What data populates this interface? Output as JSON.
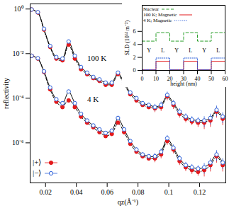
{
  "chart_data": [
    {
      "type": "scatter",
      "xlabel": "qz(Å⁻¹)",
      "ylabel": "reflectivity",
      "log": "y",
      "xlim": [
        0.01,
        0.137
      ],
      "xticks": [
        0.02,
        0.04,
        0.06,
        0.08,
        0.1,
        0.12
      ],
      "ylim": [
        1.6e-08,
        1.7
      ],
      "yticks": [
        {
          "value": 1,
          "label": "10⁰"
        },
        {
          "value": 0.01,
          "label": "10⁻²"
        },
        {
          "value": 0.0001,
          "label": "10⁻⁴"
        },
        {
          "value": 1e-06,
          "label": "10⁻⁶"
        }
      ],
      "legend": "lower left",
      "x": [
        0.011,
        0.015,
        0.019,
        0.023,
        0.027,
        0.031,
        0.035,
        0.039,
        0.043,
        0.047,
        0.051,
        0.055,
        0.059,
        0.063,
        0.067,
        0.071,
        0.075,
        0.079,
        0.083,
        0.087,
        0.091,
        0.095,
        0.099,
        0.103,
        0.107,
        0.111,
        0.115,
        0.119,
        0.123,
        0.127,
        0.131,
        0.135
      ],
      "groups": [
        {
          "label": "100 K",
          "label_x": 0.047,
          "label_y": 0.006,
          "series": [
            {
              "name": "|+⟩",
              "color": "#e31a1c",
              "marker": "filled circle",
              "line_style": "dashed",
              "values": [
                0.95,
                0.7,
                0.12,
                0.02,
                0.006,
                0.005,
                0.025,
                0.006,
                0.002,
                0.0012,
                0.0008,
                0.0006,
                0.0004,
                0.0004,
                0.0012,
                0.0004,
                0.00015,
                8e-05,
                5e-05,
                4e-05,
                3.5e-05,
                4e-05,
                0.00012,
                5e-05,
                2e-05,
                1.2e-05,
                9e-06,
                8e-06,
                8e-06,
                1e-05,
                2.5e-05,
                1.2e-05
              ],
              "errors": [
                0.03,
                0.02,
                0.004,
                0.0006,
                0.0002,
                0.0005,
                0.0025,
                0.0006,
                0.0002,
                0.00012,
                8e-05,
                6e-05,
                4e-05,
                8e-05,
                0.00024,
                8e-05,
                3e-05,
                1.6e-05,
                1e-05,
                8e-06,
                1.2e-05,
                1.4e-05,
                4.2e-05,
                1.8e-05,
                7e-06,
                4e-06,
                3e-06,
                3e-06,
                4e-06,
                5e-06,
                1.2e-05,
                6e-06
              ],
              "fit": [
                0.95,
                0.68,
                0.11,
                0.019,
                0.0058,
                0.0052,
                0.024,
                0.0062,
                0.0021,
                0.0012,
                0.00078,
                0.00058,
                0.00042,
                0.00042,
                0.0011,
                0.00042,
                0.00015,
                8e-05,
                5e-05,
                4e-05,
                3.6e-05,
                4.2e-05,
                0.00011,
                5e-05,
                2e-05,
                1.2e-05,
                9.5e-06,
                8.5e-06,
                8.5e-06,
                1.1e-05,
                2.4e-05,
                1.2e-05
              ]
            },
            {
              "name": "|−⟩",
              "color": "#2b5fd9",
              "marker": "open circle",
              "line_style": "solid",
              "values": [
                0.95,
                0.72,
                0.13,
                0.022,
                0.007,
                0.006,
                0.035,
                0.008,
                0.0025,
                0.0014,
                0.0009,
                0.0007,
                0.0005,
                0.0005,
                0.0014,
                0.0005,
                0.00018,
                0.0001,
                6e-05,
                5e-05,
                4e-05,
                5e-05,
                0.00014,
                6e-05,
                2.5e-05,
                1.5e-05,
                1.1e-05,
                1e-05,
                1e-05,
                1.3e-05,
                3e-05,
                1.5e-05
              ],
              "errors": [
                0.03,
                0.02,
                0.004,
                0.0007,
                0.0002,
                0.0006,
                0.0035,
                0.0008,
                0.00025,
                0.00014,
                9e-05,
                7e-05,
                5e-05,
                0.0001,
                0.00028,
                0.0001,
                3.6e-05,
                2e-05,
                1.2e-05,
                1e-05,
                1.4e-05,
                1.8e-05,
                5e-05,
                2e-05,
                9e-06,
                5e-06,
                4e-06,
                3.5e-06,
                5e-06,
                6.5e-06,
                1.5e-05,
                7.5e-06
              ],
              "fit": [
                0.95,
                0.7,
                0.125,
                0.021,
                0.0068,
                0.0062,
                0.033,
                0.0078,
                0.0025,
                0.0014,
                0.00088,
                0.00068,
                0.0005,
                0.0005,
                0.0013,
                0.0005,
                0.00018,
                0.0001,
                6e-05,
                5e-05,
                4.2e-05,
                5e-05,
                0.00013,
                6e-05,
                2.5e-05,
                1.5e-05,
                1.1e-05,
                1e-05,
                1e-05,
                1.3e-05,
                2.8e-05,
                1.4e-05
              ]
            }
          ]
        },
        {
          "label": "4 K",
          "label_x": 0.047,
          "label_y": 9e-05,
          "series": [
            {
              "name": "|+⟩",
              "color": "#e31a1c",
              "marker": "filled circle",
              "line_style": "dashed",
              "values": [
                0.008,
                0.006,
                0.0015,
                0.00025,
                7e-05,
                4e-05,
                8e-05,
                4e-05,
                1.5e-05,
                8e-06,
                5e-06,
                3e-06,
                2e-06,
                2.5e-06,
                8e-06,
                3e-06,
                9e-07,
                4e-07,
                2.5e-07,
                2e-07,
                2e-07,
                3e-07,
                1.2e-06,
                5e-07,
                1.5e-07,
                8e-08,
                6e-08,
                5e-08,
                6e-08,
                1e-07,
                2.5e-07,
                1e-07
              ],
              "errors": [
                0.00024,
                0.00018,
                4.5e-05,
                7.5e-06,
                2.1e-06,
                4e-06,
                8e-06,
                4e-06,
                1.5e-06,
                8e-07,
                5e-07,
                3e-07,
                2e-07,
                5e-07,
                1.6e-06,
                6e-07,
                1.8e-07,
                8e-08,
                5e-08,
                4e-08,
                7e-08,
                1.05e-07,
                4.2e-07,
                1.75e-07,
                5.25e-08,
                2.8e-08,
                2.1e-08,
                1.75e-08,
                3e-08,
                5e-08,
                1.25e-07,
                5e-08
              ],
              "fit": [
                0.008,
                0.0058,
                0.0014,
                0.00024,
                7e-05,
                4.2e-05,
                8.5e-05,
                4.1e-05,
                1.5e-05,
                8e-06,
                4.8e-06,
                3e-06,
                2.1e-06,
                2.6e-06,
                7.5e-06,
                3e-06,
                9e-07,
                4e-07,
                2.6e-07,
                2.1e-07,
                2e-07,
                3.2e-07,
                1.1e-06,
                5e-07,
                1.5e-07,
                8e-08,
                6e-08,
                5e-08,
                6e-08,
                1e-07,
                2.4e-07,
                1e-07
              ]
            },
            {
              "name": "|−⟩",
              "color": "#2b5fd9",
              "marker": "open circle",
              "line_style": "solid",
              "values": [
                0.008,
                0.0062,
                0.0016,
                0.0003,
                9e-05,
                6e-05,
                0.0002,
                6e-05,
                2e-05,
                1e-05,
                6e-06,
                4e-06,
                2.8e-06,
                3.5e-06,
                1.3e-05,
                4e-06,
                1.2e-06,
                5e-07,
                3e-07,
                2.5e-07,
                2.5e-07,
                4e-07,
                1.6e-06,
                6e-07,
                2e-07,
                1e-07,
                8e-08,
                7e-08,
                8e-08,
                1.3e-07,
                3e-07,
                1.3e-07
              ],
              "errors": [
                0.00024,
                0.00019,
                4.8e-05,
                9e-06,
                2.7e-06,
                6e-06,
                2e-05,
                6e-06,
                2e-06,
                1e-06,
                6e-07,
                4e-07,
                2.8e-07,
                7e-07,
                2.6e-06,
                8e-07,
                2.4e-07,
                1e-07,
                6e-08,
                5e-08,
                8.75e-08,
                1.4e-07,
                5.6e-07,
                2.1e-07,
                7e-08,
                3.5e-08,
                2.8e-08,
                2.45e-08,
                4e-08,
                6.5e-08,
                1.5e-07,
                6.5e-08
              ],
              "fit": [
                0.008,
                0.006,
                0.0016,
                0.00029,
                9e-05,
                6e-05,
                0.00019,
                6e-05,
                2e-05,
                1e-05,
                6e-06,
                4e-06,
                2.9e-06,
                3.5e-06,
                1.2e-05,
                4e-06,
                1.2e-06,
                5e-07,
                3.1e-07,
                2.5e-07,
                2.5e-07,
                4e-07,
                1.5e-06,
                6e-07,
                2e-07,
                1e-07,
                8e-08,
                7e-08,
                8e-08,
                1.3e-07,
                2.9e-07,
                1.3e-07
              ]
            }
          ]
        }
      ]
    },
    {
      "type": "line",
      "xlabel": "height (nm)",
      "ylabel": "SLD (10¹⁴ m⁻²)",
      "xlim": [
        0,
        60
      ],
      "xticks": [
        0,
        10,
        20,
        30,
        40,
        50,
        60
      ],
      "ylim": [
        0,
        10
      ],
      "yticks": [
        0,
        2,
        4,
        6
      ],
      "legend": "upper left",
      "x": [
        0,
        10,
        20,
        30,
        40,
        50,
        60
      ],
      "series": [
        {
          "name": "Nuclear",
          "color": "#2ca02c",
          "line_style": "dashed",
          "values": [
            4.5,
            5.8,
            4.5,
            5.8,
            4.5,
            5.8,
            5.8
          ]
        },
        {
          "name": "100 K; Magnetic",
          "color": "#e31a1c",
          "line_style": "solid",
          "values": [
            0.1,
            1.4,
            0.1,
            1.4,
            0.1,
            1.4,
            1.4
          ]
        },
        {
          "name": "4 K; Magnetic",
          "color": "#2b5fd9",
          "line_style": "dotted",
          "values": [
            0.1,
            1.9,
            0.1,
            1.9,
            0.1,
            1.9,
            1.9
          ]
        }
      ],
      "annotations": [
        {
          "text": "Y",
          "x": 5,
          "y": 3
        },
        {
          "text": "L",
          "x": 15,
          "y": 3
        },
        {
          "text": "Y",
          "x": 25,
          "y": 3
        },
        {
          "text": "L",
          "x": 35,
          "y": 3
        },
        {
          "text": "Y",
          "x": 45,
          "y": 3
        },
        {
          "text": "L",
          "x": 55,
          "y": 3
        }
      ]
    }
  ]
}
